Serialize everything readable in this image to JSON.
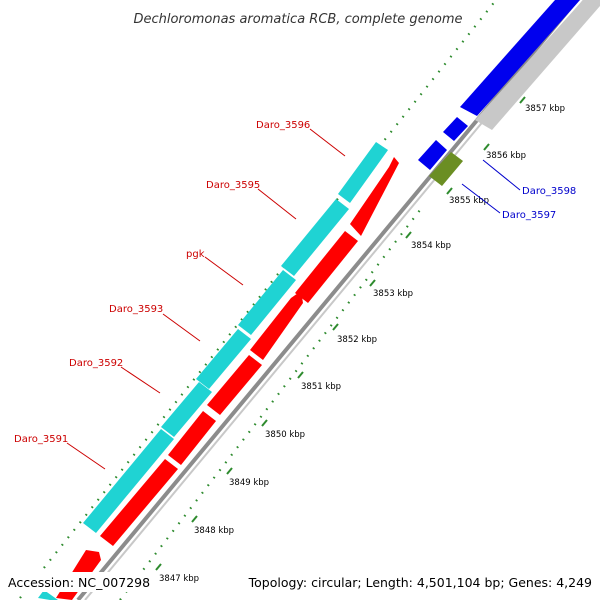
{
  "title": "Dechloromonas aromatica RCB, complete genome",
  "footer": {
    "accession": "Accession: NC_007298",
    "topology": "Topology: circular; Length: 4,501,104 bp; Genes: 4,249"
  },
  "colors": {
    "background": "#ffffff",
    "backbone": "#8c8c8c",
    "ticks": "#2e8b2e",
    "cds_forward": "#1fd3d3",
    "cds_reverse": "#ff0000",
    "gene_blue": "#0000ee",
    "gene_grey": "#c8c8c8",
    "gene_olive": "#6b8e23",
    "label_red": "#cc0000",
    "label_blue": "#0000cc"
  },
  "ticks": [
    "3847 kbp",
    "3848 kbp",
    "3849 kbp",
    "3850 kbp",
    "3851 kbp",
    "3852 kbp",
    "3853 kbp",
    "3854 kbp",
    "3855 kbp",
    "3856 kbp",
    "3857 kbp"
  ],
  "gene_labels_left": [
    "Daro_3596",
    "Daro_3595",
    "pgk",
    "Daro_3593",
    "Daro_3592",
    "Daro_3591"
  ],
  "gene_labels_right": [
    "Daro_3598",
    "Daro_3597"
  ]
}
